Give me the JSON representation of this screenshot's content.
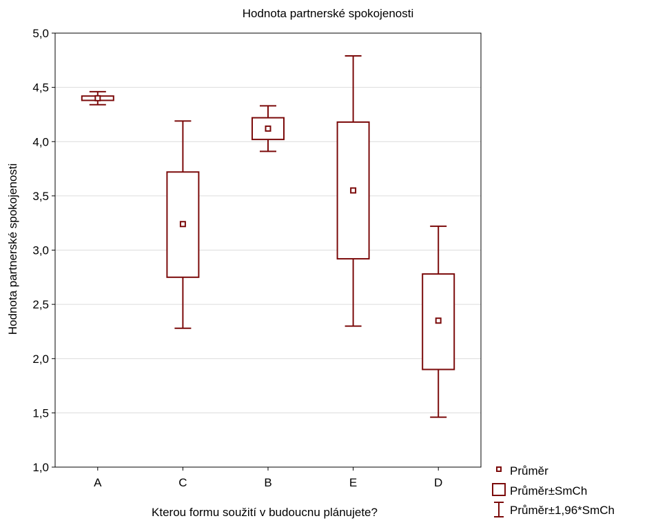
{
  "chart_data": {
    "type": "box",
    "title": "Hodnota partnerské spokojenosti",
    "xlabel": "Kterou formu soužití v budoucnu plánujete?",
    "ylabel": "Hodnota partnerské spokojenosti",
    "ylim": [
      1.0,
      5.0
    ],
    "yticks": [
      1.0,
      1.5,
      2.0,
      2.5,
      3.0,
      3.5,
      4.0,
      4.5,
      5.0
    ],
    "ytick_labels": [
      "1,0",
      "1,5",
      "2,0",
      "2,5",
      "3,0",
      "3,5",
      "4,0",
      "4,5",
      "5,0"
    ],
    "grid": true,
    "legend_position": "bottom-right",
    "color": "#7b0a0a",
    "categories": [
      "A",
      "C",
      "B",
      "E",
      "D"
    ],
    "boxes": [
      {
        "category": "A",
        "mean": 4.4,
        "box_low": 4.38,
        "box_high": 4.42,
        "whisker_low": 4.34,
        "whisker_high": 4.46
      },
      {
        "category": "C",
        "mean": 3.24,
        "box_low": 2.75,
        "box_high": 3.72,
        "whisker_low": 2.28,
        "whisker_high": 4.19
      },
      {
        "category": "B",
        "mean": 4.12,
        "box_low": 4.02,
        "box_high": 4.22,
        "whisker_low": 3.91,
        "whisker_high": 4.33
      },
      {
        "category": "E",
        "mean": 3.55,
        "box_low": 2.92,
        "box_high": 4.18,
        "whisker_low": 2.3,
        "whisker_high": 4.79
      },
      {
        "category": "D",
        "mean": 2.35,
        "box_low": 1.9,
        "box_high": 2.78,
        "whisker_low": 1.46,
        "whisker_high": 3.22
      }
    ],
    "legend": [
      {
        "label": "Průměr",
        "symbol": "point"
      },
      {
        "label": "Průměr±SmCh",
        "symbol": "box"
      },
      {
        "label": "Průměr±1,96*SmCh",
        "symbol": "whisker"
      }
    ]
  }
}
